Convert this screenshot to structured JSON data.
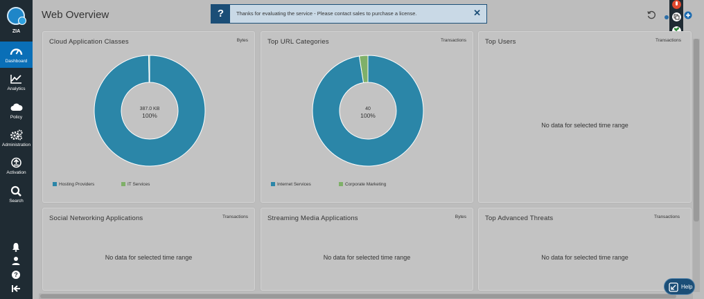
{
  "sidebar": {
    "logo_label": "ZIA",
    "items": [
      {
        "label": "Dashboard",
        "icon": "dashboard-gauge-icon",
        "active": true
      },
      {
        "label": "Analytics",
        "icon": "analytics-chart-icon",
        "active": false
      },
      {
        "label": "Policy",
        "icon": "cloud-icon",
        "active": false
      },
      {
        "label": "Administration",
        "icon": "gears-icon",
        "active": false
      },
      {
        "label": "Activation",
        "icon": "activation-upload-icon",
        "active": false
      },
      {
        "label": "Search",
        "icon": "search-icon",
        "active": false
      }
    ],
    "bottom_icons": [
      "bell-icon",
      "user-icon",
      "help-circle-icon",
      "collapse-arrow-icon"
    ]
  },
  "header": {
    "title": "Web Overview",
    "banner_message": "Thanks for evaluating the service - Please contact sales to purchase a license.",
    "banner_icon": "?",
    "banner_close": "✕"
  },
  "colors": {
    "sidebar_bg": "#1f2b33",
    "active_nav": "#0a6fb7",
    "series_blue": "#2b86a8",
    "series_green": "#7fb069",
    "banner_bg": "#c9d9e6",
    "banner_border": "#1b4e77"
  },
  "cards": {
    "cloud_apps": {
      "title": "Cloud Application Classes",
      "unit": "Bytes",
      "center_value": "387.0 KB",
      "center_percent": "100%",
      "legend": [
        {
          "label": "Hosting Providers",
          "color": "#2b86a8"
        },
        {
          "label": "IT Services",
          "color": "#7fb069"
        }
      ]
    },
    "top_url": {
      "title": "Top URL Categories",
      "unit": "Transactions",
      "center_value": "40",
      "center_percent": "100%",
      "legend": [
        {
          "label": "Internet Services",
          "color": "#2b86a8"
        },
        {
          "label": "Corporate Marketing",
          "color": "#7fb069"
        }
      ]
    },
    "top_users": {
      "title": "Top Users",
      "unit": "Transactions",
      "empty_text": "No data for selected time range"
    },
    "social": {
      "title": "Social Networking Applications",
      "unit": "Transactions",
      "empty_text": "No data for selected time range"
    },
    "streaming": {
      "title": "Streaming Media Applications",
      "unit": "Bytes",
      "empty_text": "No data for selected time range"
    },
    "threats": {
      "title": "Top Advanced Threats",
      "unit": "Transactions",
      "empty_text": "No data for selected time range"
    }
  },
  "chart_data": [
    {
      "type": "pie",
      "title": "Cloud Application Classes",
      "unit": "Bytes",
      "categories": [
        "Hosting Providers",
        "IT Services"
      ],
      "values": [
        99.7,
        0.3
      ],
      "total_label": "387.0 KB"
    },
    {
      "type": "pie",
      "title": "Top URL Categories",
      "unit": "Transactions",
      "categories": [
        "Internet Services",
        "Corporate Marketing"
      ],
      "values": [
        39,
        1
      ],
      "total_label": "40"
    }
  ],
  "help": {
    "label": "Help"
  }
}
